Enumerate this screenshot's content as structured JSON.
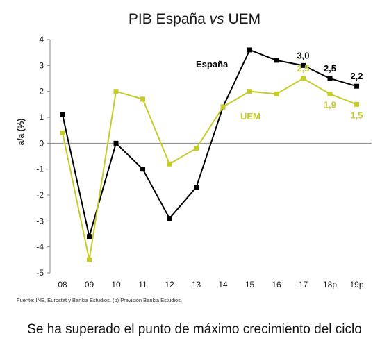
{
  "chart_data": {
    "type": "line",
    "title": {
      "pre": "PIB España ",
      "em": "vs",
      "post": " UEM"
    },
    "ylabel": "a/a (%)",
    "xlabel": "",
    "ylim": [
      -5,
      4
    ],
    "yticks": [
      4,
      3,
      2,
      1,
      0,
      -1,
      -2,
      -3,
      -4,
      -5
    ],
    "categories": [
      "08",
      "09",
      "10",
      "11",
      "12",
      "13",
      "14",
      "15",
      "16",
      "17",
      "18p",
      "19p"
    ],
    "grid": false,
    "series": [
      {
        "name": "España",
        "color": "#000000",
        "values": [
          1.1,
          -3.6,
          0.0,
          -1.0,
          -2.9,
          -1.7,
          1.4,
          3.6,
          3.2,
          3.0,
          2.5,
          2.2
        ]
      },
      {
        "name": "UEM",
        "color": "#c5cc2a",
        "values": [
          0.4,
          -4.5,
          2.0,
          1.7,
          -0.8,
          -0.2,
          1.4,
          2.0,
          1.9,
          2.5,
          1.9,
          1.5
        ]
      }
    ],
    "data_labels": [
      {
        "series": 0,
        "index": 9,
        "text": "3,0"
      },
      {
        "series": 0,
        "index": 10,
        "text": "2,5"
      },
      {
        "series": 0,
        "index": 11,
        "text": "2,2"
      },
      {
        "series": 1,
        "index": 9,
        "text": "2,5"
      },
      {
        "series": 1,
        "index": 10,
        "text": "1,9"
      },
      {
        "series": 1,
        "index": 11,
        "text": "1,5"
      }
    ]
  },
  "source": "Fuente: INE, Eurostat y Bankia Estudios. (p) Previsión Bankia Estudios.",
  "caption": "Se ha superado el punto de máximo crecimiento del ciclo"
}
